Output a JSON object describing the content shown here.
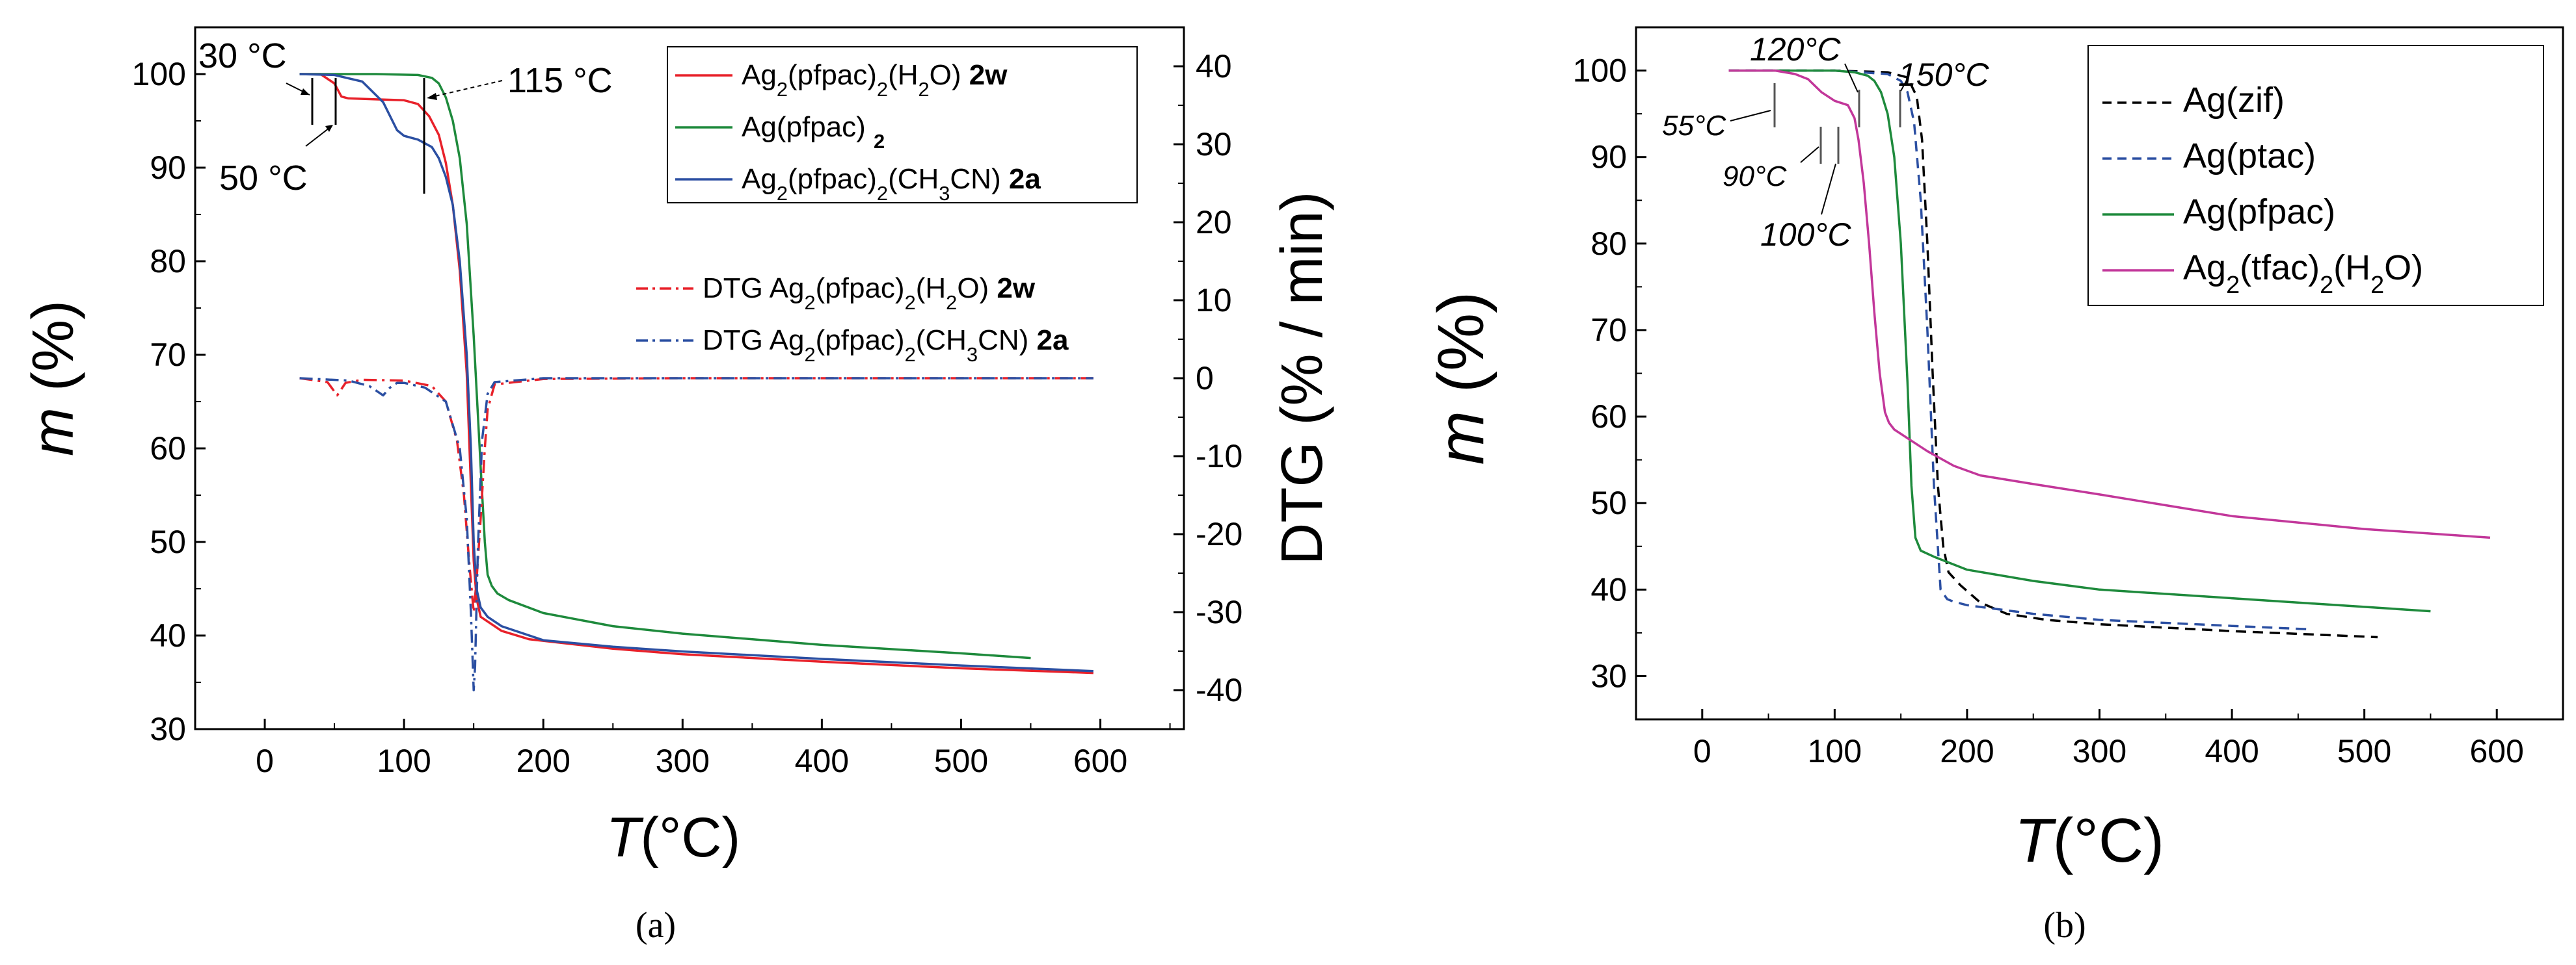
{
  "chart_data": [
    {
      "panel": "a",
      "caption": "(a)",
      "type": "line",
      "xlabel_italic": "T",
      "xlabel_unit": "(°C)",
      "ylabel_italic": "m",
      "ylabel_unit": "(%)",
      "y2label": "DTG (% / min)",
      "xlim": [
        -50,
        660
      ],
      "ylim": [
        30,
        105
      ],
      "y2lim": [
        -45,
        45
      ],
      "xticks": [
        "0",
        "100",
        "200",
        "300",
        "400",
        "500",
        "600"
      ],
      "yticks": [
        "30",
        "40",
        "50",
        "60",
        "70",
        "80",
        "90",
        "100"
      ],
      "y2ticks": [
        "-40",
        "-30",
        "-20",
        "-10",
        "0",
        "10",
        "20",
        "30",
        "40"
      ],
      "legend": [
        {
          "label": "Ag2(pfpac)2(H2O) 2w",
          "parts": [
            "Ag",
            "2",
            "(pfpac)",
            "2",
            "(H",
            "2",
            "O) ",
            "2w"
          ],
          "color": "#e8212a",
          "dash": "solid"
        },
        {
          "label": "Ag(pfpac) 2",
          "parts": [
            "Ag(pfpac) ",
            "2"
          ],
          "color": "#1e8a3c",
          "dash": "solid"
        },
        {
          "label": "Ag2(pfpac)2(CH3CN) 2a",
          "parts": [
            "Ag",
            "2",
            "(pfpac)",
            "2",
            "(CH",
            "3",
            "CN) ",
            "2a"
          ],
          "color": "#2b4fa2",
          "dash": "solid"
        }
      ],
      "legend2": [
        {
          "label": "DTG Ag2(pfpac)2(H2O) 2w",
          "parts": [
            "DTG Ag",
            "2",
            "(pfpac)",
            "2",
            "(H",
            "2",
            "O) ",
            "2w"
          ],
          "color": "#e8212a",
          "dash": "dashdot"
        },
        {
          "label": "DTG Ag2(pfpac)2(CH3CN) 2a",
          "parts": [
            "DTG Ag",
            "2",
            "(pfpac)",
            "2",
            "(CH",
            "3",
            "CN) ",
            "2a"
          ],
          "color": "#2b4fa2",
          "dash": "dashdot"
        }
      ],
      "annotations": [
        "30 °C",
        "50 °C",
        "115 °C"
      ],
      "series": [
        {
          "name": "Ag2(pfpac)2(H2O) 2w",
          "axis": "left",
          "color": "#e8212a",
          "dash": "solid",
          "x": [
            25,
            40,
            50,
            55,
            60,
            80,
            100,
            110,
            118,
            125,
            130,
            135,
            140,
            145,
            148,
            150,
            152,
            155,
            160,
            170,
            190,
            250,
            300,
            400,
            500,
            595
          ],
          "y": [
            100,
            100,
            99,
            97.6,
            97.4,
            97.3,
            97.2,
            96.8,
            95.5,
            93.5,
            90.5,
            86,
            79,
            68,
            56,
            48,
            44,
            42,
            41.5,
            40.5,
            39.6,
            38.6,
            38,
            37.2,
            36.5,
            36
          ]
        },
        {
          "name": "Ag(pfpac) 2",
          "axis": "left",
          "color": "#1e8a3c",
          "dash": "solid",
          "x": [
            25,
            80,
            110,
            120,
            125,
            130,
            135,
            140,
            145,
            150,
            155,
            158,
            160,
            163,
            167,
            175,
            200,
            250,
            300,
            400,
            500,
            550
          ],
          "y": [
            100,
            100,
            99.9,
            99.6,
            99,
            97.5,
            95,
            91,
            84,
            72,
            58,
            50,
            46.5,
            45.3,
            44.5,
            43.8,
            42.4,
            41,
            40.2,
            39,
            38.1,
            37.6
          ]
        },
        {
          "name": "Ag2(pfpac)2(CH3CN) 2a",
          "axis": "left",
          "color": "#2b4fa2",
          "dash": "solid",
          "x": [
            25,
            50,
            70,
            85,
            95,
            100,
            110,
            120,
            125,
            130,
            135,
            140,
            145,
            148,
            150,
            152,
            155,
            160,
            170,
            200,
            250,
            300,
            400,
            500,
            595
          ],
          "y": [
            100,
            99.9,
            99.2,
            97,
            94,
            93.4,
            93,
            92.2,
            91,
            89,
            86,
            80,
            70,
            60,
            50,
            45,
            43,
            42,
            41,
            39.5,
            38.8,
            38.3,
            37.5,
            36.8,
            36.2
          ]
        },
        {
          "name": "DTG Ag2(pfpac)2(H2O) 2w",
          "axis": "right",
          "color": "#e8212a",
          "dash": "dashdot",
          "x": [
            25,
            45,
            52,
            58,
            70,
            100,
            120,
            130,
            138,
            143,
            147,
            150,
            152,
            155,
            158,
            160,
            165,
            200,
            300,
            400,
            500,
            595
          ],
          "y": [
            0,
            -0.5,
            -2.2,
            -0.6,
            -0.2,
            -0.3,
            -1,
            -3,
            -8,
            -15,
            -24,
            -30,
            -26,
            -18,
            -9,
            -4,
            -0.8,
            -0.1,
            0,
            0,
            0,
            0
          ]
        },
        {
          "name": "DTG Ag2(pfpac)2(CH3CN) 2a",
          "axis": "right",
          "color": "#2b4fa2",
          "dash": "dashdot",
          "x": [
            25,
            60,
            75,
            85,
            90,
            95,
            100,
            115,
            130,
            140,
            145,
            148,
            150,
            151,
            153,
            156,
            160,
            165,
            200,
            300,
            400,
            500,
            595
          ],
          "y": [
            0,
            -0.3,
            -1,
            -2.2,
            -1.2,
            -0.6,
            -0.6,
            -1.2,
            -3,
            -9,
            -18,
            -30,
            -40,
            -37,
            -22,
            -8,
            -2,
            -0.5,
            0,
            0,
            0,
            0,
            0
          ]
        }
      ]
    },
    {
      "panel": "b",
      "caption": "(b)",
      "type": "line",
      "xlabel_italic": "T",
      "xlabel_unit": "(°C)",
      "ylabel_italic": "m",
      "ylabel_unit": "(%)",
      "xlim": [
        -50,
        650
      ],
      "ylim": [
        25,
        105
      ],
      "xticks": [
        "0",
        "100",
        "200",
        "300",
        "400",
        "500",
        "600"
      ],
      "yticks": [
        "30",
        "40",
        "50",
        "60",
        "70",
        "80",
        "90",
        "100"
      ],
      "legend": [
        {
          "label": "Ag(zif)",
          "parts": [
            "Ag(zif)"
          ],
          "color": "#000000",
          "dash": "dashed"
        },
        {
          "label": "Ag(ptac)",
          "parts": [
            "Ag(ptac)"
          ],
          "color": "#2b4fa2",
          "dash": "dashed"
        },
        {
          "label": "Ag(pfpac)",
          "parts": [
            "Ag(pfpac)"
          ],
          "color": "#1e8a3c",
          "dash": "solid"
        },
        {
          "label": "Ag2(tfac)2(H2O)",
          "parts": [
            "Ag",
            "2",
            "(tfac)",
            "2",
            "(H",
            "2",
            "O)"
          ],
          "color": "#c2379a",
          "dash": "solid"
        }
      ],
      "annotations": [
        "55°C",
        "90°C",
        "100°C",
        "120°C",
        "150°C"
      ],
      "series": [
        {
          "name": "Ag(zif)",
          "color": "#000000",
          "dash": "dashed",
          "x": [
            20,
            100,
            140,
            155,
            162,
            166,
            170,
            174,
            178,
            182,
            186,
            195,
            210,
            230,
            260,
            300,
            400,
            510
          ],
          "y": [
            100,
            100,
            99.8,
            99.2,
            97,
            92,
            80,
            65,
            52,
            45,
            42,
            40.5,
            38.5,
            37.2,
            36.5,
            36,
            35.2,
            34.5
          ]
        },
        {
          "name": "Ag(ptac)",
          "color": "#2b4fa2",
          "dash": "dashed",
          "x": [
            20,
            100,
            140,
            150,
            155,
            160,
            165,
            170,
            175,
            180,
            185,
            190,
            200,
            250,
            300,
            400,
            460
          ],
          "y": [
            100,
            100,
            99.6,
            98.8,
            97.5,
            94,
            85,
            70,
            52,
            40,
            38.9,
            38.6,
            38.2,
            37.2,
            36.5,
            35.8,
            35.4
          ]
        },
        {
          "name": "Ag(pfpac)",
          "color": "#1e8a3c",
          "dash": "solid",
          "x": [
            20,
            100,
            115,
            125,
            130,
            135,
            140,
            145,
            150,
            155,
            158,
            161,
            165,
            175,
            200,
            250,
            300,
            400,
            500,
            550
          ],
          "y": [
            100,
            100,
            99.8,
            99.4,
            98.8,
            97.5,
            95,
            90,
            80,
            64,
            52,
            46,
            44.5,
            43.8,
            42.3,
            41,
            40,
            39,
            38,
            37.5
          ]
        },
        {
          "name": "Ag2(tfac)2(H2O)",
          "color": "#c2379a",
          "dash": "solid",
          "x": [
            20,
            55,
            70,
            80,
            90,
            100,
            110,
            115,
            118,
            122,
            126,
            130,
            134,
            138,
            141,
            145,
            155,
            170,
            190,
            210,
            250,
            300,
            400,
            500,
            595
          ],
          "y": [
            100,
            100,
            99.6,
            99,
            97.5,
            96.5,
            96,
            94.5,
            92,
            87,
            80,
            72,
            65,
            60.5,
            59.3,
            58.5,
            57.5,
            56,
            54.3,
            53.2,
            52.2,
            51,
            48.5,
            47,
            46
          ]
        }
      ]
    }
  ]
}
